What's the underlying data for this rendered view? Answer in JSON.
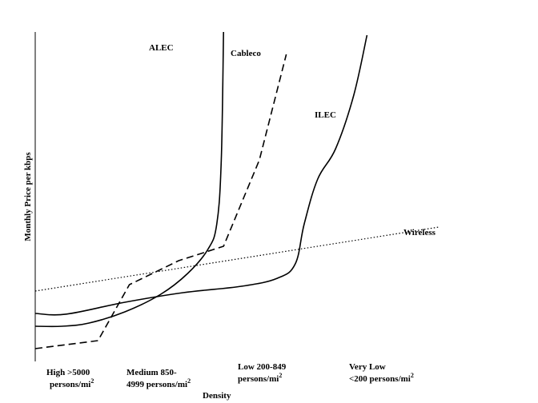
{
  "chart_data": {
    "type": "line",
    "xlabel": "Density",
    "ylabel": "Monthly Price  per kbps",
    "categories": [
      {
        "line1": "High >5000",
        "line2": "persons/mi",
        "sup": "2"
      },
      {
        "line1": "Medium 850-",
        "line2": "4999 persons/mi",
        "sup": "2"
      },
      {
        "line1": "Low 200-849",
        "line2": "persons/mi",
        "sup": "2"
      },
      {
        "line1": "Very Low",
        "line2": "<200  persons/mi",
        "sup": "2"
      }
    ],
    "xlim": [
      0,
      10
    ],
    "ylim": [
      0,
      10
    ],
    "grid": false,
    "series": [
      {
        "name": "ALEC",
        "style": "solid",
        "points": [
          [
            0.0,
            0.8
          ],
          [
            0.6,
            0.8
          ],
          [
            1.2,
            0.9
          ],
          [
            2.0,
            1.25
          ],
          [
            2.8,
            1.8
          ],
          [
            3.4,
            2.45
          ],
          [
            3.85,
            3.2
          ],
          [
            4.05,
            4.0
          ],
          [
            4.15,
            6.0
          ],
          [
            4.2,
            10.0
          ]
        ]
      },
      {
        "name": "Cableco",
        "style": "dashed",
        "points": [
          [
            0.0,
            0.1
          ],
          [
            1.4,
            0.35
          ],
          [
            2.1,
            2.1
          ],
          [
            3.2,
            2.85
          ],
          [
            4.2,
            3.3
          ],
          [
            5.0,
            6.0
          ],
          [
            5.6,
            9.3
          ]
        ]
      },
      {
        "name": "ILEC",
        "style": "solid",
        "points": [
          [
            0.0,
            1.2
          ],
          [
            0.7,
            1.18
          ],
          [
            2.0,
            1.55
          ],
          [
            3.3,
            1.85
          ],
          [
            4.6,
            2.05
          ],
          [
            5.4,
            2.3
          ],
          [
            5.8,
            2.75
          ],
          [
            6.0,
            4.0
          ],
          [
            6.3,
            5.4
          ],
          [
            6.7,
            6.35
          ],
          [
            7.1,
            8.0
          ],
          [
            7.4,
            9.9
          ]
        ]
      },
      {
        "name": "Wireless",
        "style": "dotted",
        "points": [
          [
            0.0,
            1.9
          ],
          [
            9.0,
            3.9
          ]
        ]
      }
    ]
  }
}
